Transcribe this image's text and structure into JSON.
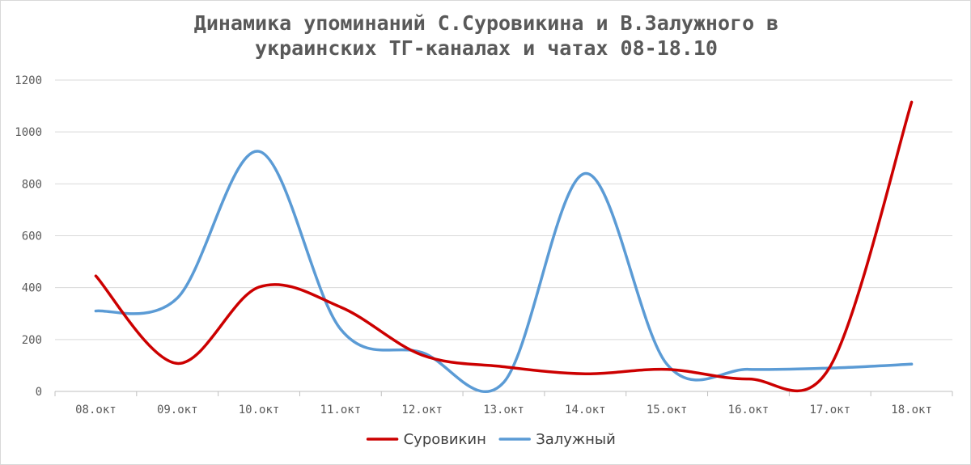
{
  "chart_data": {
    "type": "line",
    "title": "Динамика упоминаний С.Суровикина и В.Залужного в\nукраинских ТГ-каналах и чатах 08-18.10",
    "categories": [
      "08.окт",
      "09.окт",
      "10.окт",
      "11.окт",
      "12.окт",
      "13.окт",
      "14.окт",
      "15.окт",
      "16.окт",
      "17.окт",
      "18.окт"
    ],
    "series": [
      {
        "name": "Суровикин",
        "color": "#cc0000",
        "values": [
          445,
          108,
          402,
          325,
          140,
          95,
          68,
          85,
          48,
          95,
          1115
        ]
      },
      {
        "name": "Залужный",
        "color": "#5b9bd5",
        "values": [
          310,
          360,
          925,
          240,
          150,
          35,
          840,
          105,
          85,
          90,
          105
        ]
      }
    ],
    "ylim": [
      0,
      1200
    ],
    "yticks": [
      0,
      200,
      400,
      600,
      800,
      1000,
      1200
    ],
    "grid": true,
    "smooth": true,
    "legend_position": "bottom"
  }
}
